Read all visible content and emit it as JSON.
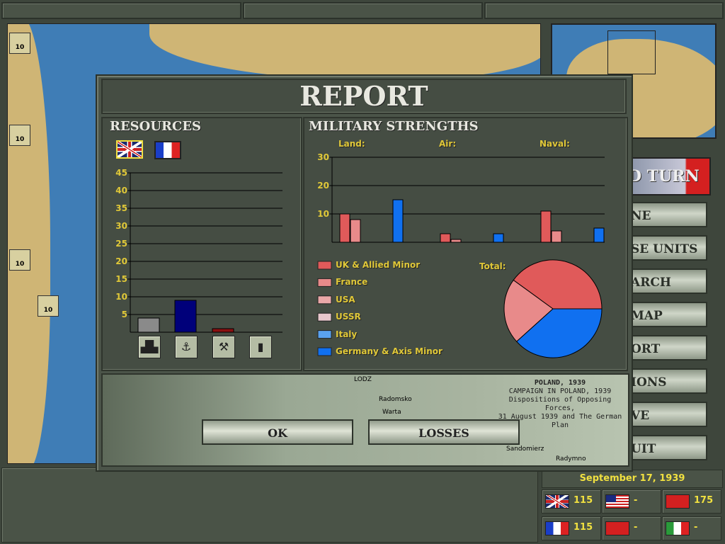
{
  "dialog": {
    "title": "REPORT",
    "ok_label": "OK",
    "losses_label": "LOSSES",
    "photo_caption": {
      "title": "POLAND, 1939",
      "line1": "CAMPAIGN IN POLAND, 1939",
      "line2": "Dispositions of Opposing Forces,",
      "line3": "31 August 1939 and The German Plan",
      "places": [
        "LODZ",
        "Radomsko",
        "Warta",
        "Sandomierz",
        "Radymno"
      ]
    }
  },
  "resources": {
    "title": "RESOURCES",
    "nations": [
      {
        "name": "UK",
        "flag": "uk",
        "selected": true
      },
      {
        "name": "France",
        "flag": "fr",
        "selected": false
      }
    ],
    "chart_data": {
      "type": "bar",
      "categories": [
        "industry",
        "naval",
        "mining",
        "oil"
      ],
      "category_icons": [
        "factory-icon",
        "anchor-icon",
        "pick-hammer-icon",
        "oil-barrel-icon"
      ],
      "values": [
        4,
        9,
        1,
        0
      ],
      "colors": [
        "#8a8a8a",
        "#00007a",
        "#8a1010",
        "#000000"
      ],
      "yticks": [
        "5",
        "10",
        "15",
        "20",
        "25",
        "30",
        "35",
        "40",
        "45"
      ],
      "ylim": [
        0,
        45
      ]
    }
  },
  "military": {
    "title": "MILITARY STRENGTHS",
    "chart_data": {
      "type": "bar",
      "categories": [
        "Land:",
        "Air:",
        "Naval:"
      ],
      "ylim": [
        0,
        30
      ],
      "yticks": [
        "10",
        "20",
        "30"
      ],
      "series": [
        {
          "name": "UK & Allied Minor",
          "color": "#e05a5a",
          "values": [
            10,
            3,
            11
          ]
        },
        {
          "name": "France",
          "color": "#e88a8a",
          "values": [
            8,
            1,
            4
          ]
        },
        {
          "name": "USA",
          "color": "#eaa8a8",
          "values": [
            0,
            0,
            0
          ]
        },
        {
          "name": "USSR",
          "color": "#e8c8cc",
          "values": [
            0,
            0,
            0
          ]
        },
        {
          "name": "Italy",
          "color": "#5aa2f0",
          "values": [
            0,
            0,
            0
          ]
        },
        {
          "name": "Germany & Axis Minor",
          "color": "#1070f0",
          "values": [
            15,
            3,
            5
          ]
        }
      ]
    },
    "pie": {
      "label": "Total:",
      "type": "pie",
      "values": [
        {
          "name": "UK & Allied Minor",
          "value": 24
        },
        {
          "name": "France",
          "value": 13
        },
        {
          "name": "Germany & Axis Minor",
          "value": 23
        }
      ]
    }
  },
  "sidebar": {
    "buttons": [
      "D TURN",
      "NE",
      "SE UNITS",
      "ARCH",
      "MAP",
      "ORT",
      "IONS",
      "VE",
      "UIT"
    ]
  },
  "status": {
    "date": "September 17, 1939",
    "nations": [
      {
        "flag": "uk",
        "value": "115"
      },
      {
        "flag": "us",
        "value": "-"
      },
      {
        "flag": "de",
        "value": "175"
      },
      {
        "flag": "fr",
        "value": "115"
      },
      {
        "flag": "su",
        "value": "-"
      },
      {
        "flag": "it",
        "value": "-"
      }
    ]
  },
  "map": {
    "unit_labels": [
      "10",
      "10",
      "10",
      "10"
    ]
  }
}
